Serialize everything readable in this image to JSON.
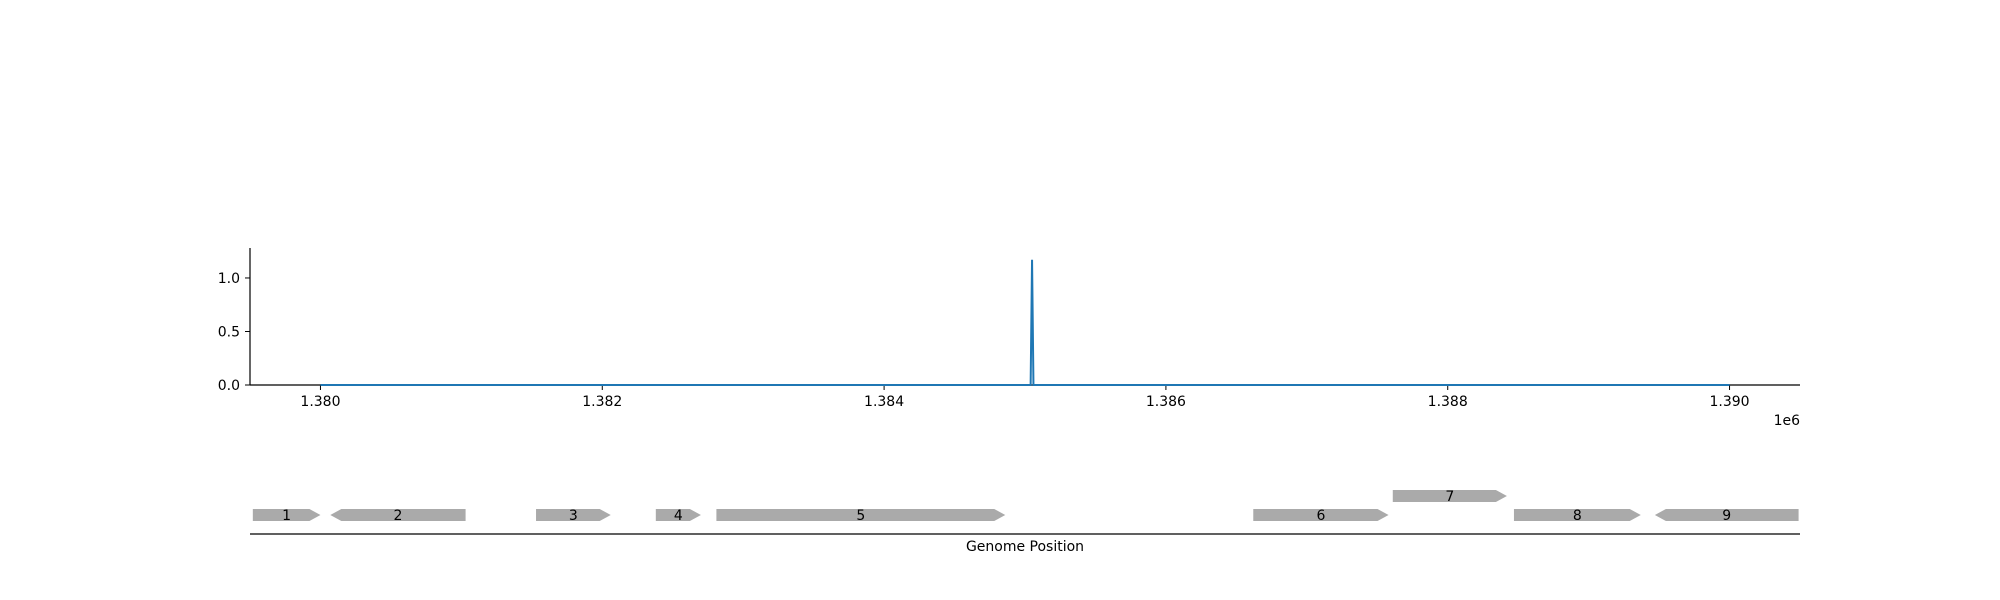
{
  "chart_data": {
    "type": "line",
    "title": "",
    "xlabel": "Genome Position",
    "ylabel": "",
    "x_offset_label": "1e6",
    "xlim": [
      1379500,
      1390500
    ],
    "ylim": [
      0,
      1.28
    ],
    "x_ticks": [
      {
        "value": 1380000,
        "label": "1.380"
      },
      {
        "value": 1382000,
        "label": "1.382"
      },
      {
        "value": 1384000,
        "label": "1.384"
      },
      {
        "value": 1386000,
        "label": "1.386"
      },
      {
        "value": 1388000,
        "label": "1.388"
      },
      {
        "value": 1390000,
        "label": "1.390"
      }
    ],
    "y_ticks": [
      {
        "value": 0.0,
        "label": "0.0"
      },
      {
        "value": 0.5,
        "label": "0.5"
      },
      {
        "value": 1.0,
        "label": "1.0"
      }
    ],
    "grid": false,
    "color": "#1f77b4",
    "series": [
      {
        "x": [
          1380000,
          1385040,
          1385050,
          1385060,
          1390000
        ],
        "y": [
          0,
          0,
          1.17,
          0,
          0
        ]
      }
    ],
    "genes": [
      {
        "label": "1",
        "start": 1379520,
        "end": 1380000,
        "strand": "+",
        "row": 0
      },
      {
        "label": "2",
        "start": 1380070,
        "end": 1381030,
        "strand": "-",
        "row": 0
      },
      {
        "label": "3",
        "start": 1381530,
        "end": 1382060,
        "strand": "+",
        "row": 0
      },
      {
        "label": "4",
        "start": 1382380,
        "end": 1382700,
        "strand": "+",
        "row": 0
      },
      {
        "label": "5",
        "start": 1382810,
        "end": 1384860,
        "strand": "+",
        "row": 0
      },
      {
        "label": "6",
        "start": 1386620,
        "end": 1387580,
        "strand": "+",
        "row": 0
      },
      {
        "label": "7",
        "start": 1387610,
        "end": 1388420,
        "strand": "+",
        "row": 1
      },
      {
        "label": "8",
        "start": 1388470,
        "end": 1389370,
        "strand": "+",
        "row": 0
      },
      {
        "label": "9",
        "start": 1389470,
        "end": 1390490,
        "strand": "-",
        "row": 0
      }
    ],
    "gene_color": "#aaaaaa"
  }
}
